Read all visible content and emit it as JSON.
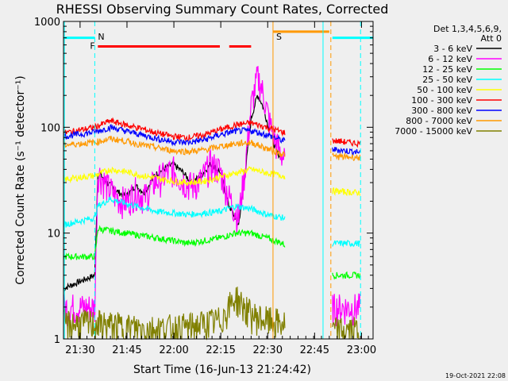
{
  "chart_data": {
    "type": "line",
    "title": "RHESSI Observing Summary Count Rates, Corrected",
    "xlabel": "Start Time (16-Jun-13 21:24:42)",
    "ylabel": "Corrected Count Rate (s⁻¹ detector⁻¹)",
    "y_scale": "log",
    "ylim": [
      1,
      1000
    ],
    "y_ticks": [
      {
        "value": 1,
        "label": "1"
      },
      {
        "value": 10,
        "label": "10"
      },
      {
        "value": 100,
        "label": "100"
      },
      {
        "value": 1000,
        "label": "1000"
      }
    ],
    "x_axis_units": "minutes since 21:24:42",
    "xlim": [
      0,
      99
    ],
    "x_ticks": [
      {
        "value": 5.3,
        "label": "21:30"
      },
      {
        "value": 20.3,
        "label": "21:45"
      },
      {
        "value": 35.3,
        "label": "22:00"
      },
      {
        "value": 50.3,
        "label": "22:15"
      },
      {
        "value": 65.3,
        "label": "22:30"
      },
      {
        "value": 80.3,
        "label": "22:45"
      },
      {
        "value": 95.3,
        "label": "23:00"
      }
    ],
    "legend_header": [
      "Det 1,3,4,5,6,9,",
      "Att 0"
    ],
    "legend_placement": "right",
    "date_stamp": "19-Oct-2021 22:08",
    "gap": [
      71,
      86
    ],
    "series": [
      {
        "name": "3 - 6 keV",
        "color": "#000000",
        "x": [
          0,
          10,
          11,
          14,
          17,
          20,
          23,
          26,
          29,
          32,
          35,
          38,
          41,
          44,
          47,
          50,
          53,
          56,
          58,
          60,
          62,
          63,
          64,
          66,
          68,
          70
        ],
        "y": [
          3,
          4,
          38,
          30,
          25,
          22,
          28,
          24,
          35,
          40,
          45,
          38,
          30,
          35,
          45,
          38,
          18,
          12,
          35,
          120,
          200,
          180,
          150,
          90,
          60,
          50
        ]
      },
      {
        "name": "6 - 12 keV",
        "color": "#ff00ff",
        "x": [
          0,
          8,
          10,
          11,
          14,
          17,
          20,
          23,
          26,
          29,
          32,
          35,
          38,
          41,
          44,
          47,
          50,
          53,
          56,
          58,
          60,
          62,
          63,
          64,
          66,
          68,
          70,
          86,
          95
        ],
        "y": [
          2,
          2,
          2,
          38,
          28,
          22,
          20,
          25,
          22,
          30,
          35,
          40,
          32,
          28,
          32,
          45,
          40,
          22,
          14,
          40,
          160,
          300,
          260,
          200,
          110,
          70,
          55,
          2,
          2
        ]
      },
      {
        "name": "12 - 25 keV",
        "color": "#00ff00",
        "x": [
          0,
          10,
          11,
          20,
          30,
          40,
          50,
          55,
          60,
          65,
          70,
          86,
          95
        ],
        "y": [
          6,
          6,
          11,
          10,
          9,
          8,
          9,
          10,
          10,
          9,
          8,
          4,
          4
        ]
      },
      {
        "name": "25 - 50 keV",
        "color": "#00ffff",
        "x": [
          0,
          10,
          11,
          15,
          20,
          30,
          40,
          50,
          55,
          60,
          65,
          70,
          86,
          95
        ],
        "y": [
          12,
          14,
          18,
          21,
          19,
          16,
          15,
          16,
          18,
          17,
          15,
          14,
          8,
          8
        ]
      },
      {
        "name": "50 - 100 keV",
        "color": "#ffff00",
        "x": [
          0,
          10,
          15,
          20,
          25,
          30,
          35,
          40,
          45,
          50,
          55,
          60,
          65,
          70,
          86,
          95
        ],
        "y": [
          32,
          35,
          40,
          38,
          35,
          33,
          31,
          30,
          31,
          34,
          37,
          40,
          37,
          35,
          25,
          24
        ]
      },
      {
        "name": "100 - 300 keV",
        "color": "#ff0000",
        "x": [
          0,
          10,
          15,
          20,
          25,
          30,
          35,
          40,
          45,
          50,
          55,
          60,
          65,
          70,
          86,
          95
        ],
        "y": [
          88,
          100,
          115,
          105,
          97,
          88,
          82,
          80,
          85,
          95,
          105,
          110,
          100,
          90,
          75,
          70
        ]
      },
      {
        "name": "300 - 800 keV",
        "color": "#0000ff",
        "x": [
          0,
          10,
          15,
          20,
          25,
          30,
          35,
          40,
          45,
          50,
          55,
          60,
          65,
          70,
          86,
          95
        ],
        "y": [
          82,
          90,
          100,
          92,
          85,
          78,
          73,
          72,
          76,
          85,
          92,
          93,
          85,
          75,
          62,
          58
        ]
      },
      {
        "name": "800 - 7000 keV",
        "color": "#ff9900",
        "x": [
          0,
          10,
          15,
          20,
          25,
          30,
          35,
          40,
          45,
          50,
          55,
          60,
          65,
          70,
          86,
          95
        ],
        "y": [
          68,
          72,
          78,
          74,
          68,
          64,
          60,
          59,
          61,
          66,
          70,
          72,
          63,
          56,
          53,
          52
        ]
      },
      {
        "name": "7000 - 15000 keV",
        "color": "#808000",
        "x": [
          0,
          10,
          20,
          30,
          40,
          50,
          55,
          60,
          65,
          70,
          86,
          95
        ],
        "y": [
          1.4,
          1.4,
          1.3,
          1.25,
          1.3,
          1.5,
          2.5,
          1.7,
          1.5,
          1.4,
          1.2,
          1.2
        ]
      }
    ],
    "flags": [
      {
        "label": "N",
        "color": "#00ffff",
        "line_style": "dashed",
        "positions": [
          10,
          95
        ]
      },
      {
        "label": "F",
        "color": "#ff0000",
        "line_style": "solid"
      },
      {
        "label": "S",
        "color": "#ff9900",
        "line_style": "solid",
        "positions": [
          67
        ]
      }
    ],
    "attenuator_bars": [
      {
        "color": "#00ffff",
        "segments": [
          [
            0,
            10
          ],
          [
            86,
            99
          ]
        ]
      },
      {
        "color": "#ff0000",
        "segments": [
          [
            11,
            50
          ],
          [
            53,
            60
          ]
        ]
      },
      {
        "color": "#ff9900",
        "segments": [
          [
            67,
            85
          ]
        ]
      }
    ]
  }
}
